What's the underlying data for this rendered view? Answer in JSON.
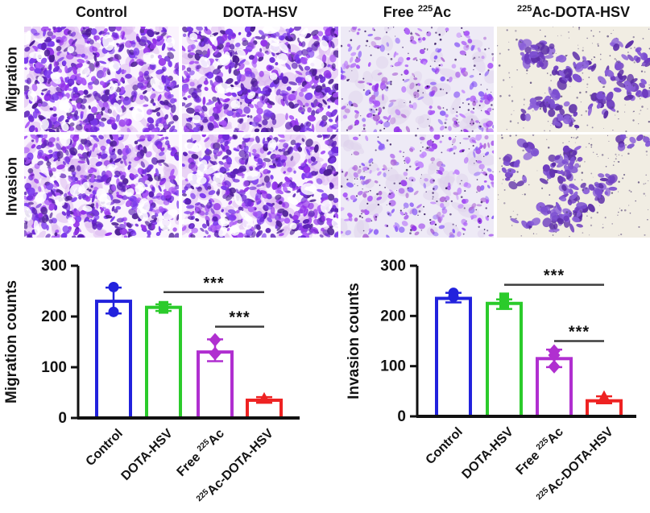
{
  "figure": {
    "columns": [
      {
        "pre": "Control",
        "sup": "",
        "post": ""
      },
      {
        "pre": "DOTA-HSV",
        "sup": "",
        "post": ""
      },
      {
        "pre": "Free ",
        "sup": "225",
        "post": "Ac"
      },
      {
        "pre": "",
        "sup": "225",
        "post": "Ac-DOTA-HSV"
      }
    ],
    "rows": [
      "Migration",
      "Invasion"
    ],
    "panels": [
      {
        "id": "micrograph-migration-control",
        "texture": "dense",
        "seed": 11
      },
      {
        "id": "micrograph-migration-dota-hsv",
        "texture": "dense",
        "seed": 23
      },
      {
        "id": "micrograph-migration-free-225ac",
        "texture": "moderate",
        "seed": 37
      },
      {
        "id": "micrograph-migration-225ac-dota-hsv",
        "texture": "sparse",
        "seed": 41
      },
      {
        "id": "micrograph-invasion-control",
        "texture": "dense",
        "seed": 53
      },
      {
        "id": "micrograph-invasion-dota-hsv",
        "texture": "dense",
        "seed": 67
      },
      {
        "id": "micrograph-invasion-free-225ac",
        "texture": "moderate",
        "seed": 79
      },
      {
        "id": "micrograph-invasion-225ac-dota-hsv",
        "texture": "sparse",
        "seed": 97
      }
    ],
    "textures": {
      "dense": {
        "bg": "#faf3fd",
        "palette": [
          "#4c1d95",
          "#5b21b6",
          "#6d28d9",
          "#7c3aed",
          "#9333ea",
          "#a855f7"
        ],
        "light": "#d9b6ef",
        "dot": "#3b1d66"
      },
      "moderate": {
        "bg": "#eeeaf6",
        "palette": [
          "#a855f7",
          "#9333ea",
          "#b06fd8",
          "#c084fc",
          "#8b5cf6"
        ],
        "light": "#ddd2ec",
        "dot": "#3b1d66"
      },
      "sparse": {
        "bg": "#f1ede3",
        "palette": [
          "#6d3bbf",
          "#5b2ca8",
          "#7c4fd0",
          "#8a5fd8"
        ],
        "light": "#e4dced",
        "dot": "#5a4a7a"
      }
    }
  },
  "chart_data": [
    {
      "type": "bar",
      "title": "",
      "xlabel": "",
      "ylabel": "Migration counts",
      "ylim": [
        0,
        300
      ],
      "yticks": [
        0,
        100,
        200,
        300
      ],
      "grid": "off",
      "legend": "none",
      "categories": [
        {
          "pre": "Control",
          "sup": "",
          "post": ""
        },
        {
          "pre": "DOTA-HSV",
          "sup": "",
          "post": ""
        },
        {
          "pre": "Free ",
          "sup": "225",
          "post": "Ac"
        },
        {
          "pre": "",
          "sup": "225",
          "post": "Ac-DOTA-HSV"
        }
      ],
      "values": [
        230,
        218,
        130,
        35
      ],
      "errors": [
        {
          "lo": 206,
          "hi": 257
        },
        {
          "lo": 211,
          "hi": 224
        },
        {
          "lo": 112,
          "hi": 155
        },
        {
          "lo": 30,
          "hi": 41
        }
      ],
      "points": [
        [
          258,
          209
        ],
        [
          221,
          215
        ],
        [
          154,
          127
        ],
        [
          39
        ]
      ],
      "colors": [
        "#2222dd",
        "#2bcb2b",
        "#b02fd0",
        "#ee2222"
      ],
      "markers": [
        "circle",
        "square",
        "diamond",
        "triangle"
      ],
      "bar_fill": "#ffffff",
      "significance": [
        {
          "from": 1,
          "to": 3,
          "value": 248,
          "label": "***"
        },
        {
          "from": 2,
          "to": 3,
          "value": 180,
          "label": "***"
        }
      ]
    },
    {
      "type": "bar",
      "title": "",
      "xlabel": "",
      "ylabel": "Invasion counts",
      "ylim": [
        0,
        300
      ],
      "yticks": [
        0,
        100,
        200,
        300
      ],
      "grid": "off",
      "legend": "none",
      "categories": [
        {
          "pre": "Control",
          "sup": "",
          "post": ""
        },
        {
          "pre": "DOTA-HSV",
          "sup": "",
          "post": ""
        },
        {
          "pre": "Free ",
          "sup": "225",
          "post": "Ac"
        },
        {
          "pre": "",
          "sup": "225",
          "post": "Ac-DOTA-HSV"
        }
      ],
      "values": [
        235,
        225,
        115,
        31
      ],
      "errors": [
        {
          "lo": 227,
          "hi": 246
        },
        {
          "lo": 214,
          "hi": 233
        },
        {
          "lo": 98,
          "hi": 133
        },
        {
          "lo": 26,
          "hi": 40
        }
      ],
      "points": [
        [
          246,
          238
        ],
        [
          237,
          222
        ],
        [
          130,
          122,
          99
        ],
        [
          40
        ]
      ],
      "colors": [
        "#2222dd",
        "#2bcb2b",
        "#b02fd0",
        "#ee2222"
      ],
      "markers": [
        "circle",
        "square",
        "diamond",
        "triangle"
      ],
      "bar_fill": "#ffffff",
      "significance": [
        {
          "from": 1,
          "to": 3,
          "value": 262,
          "label": "***"
        },
        {
          "from": 2,
          "to": 3,
          "value": 150,
          "label": "***"
        }
      ]
    }
  ],
  "sig_line_color": "#3d3d3d",
  "text_color": "#141414"
}
